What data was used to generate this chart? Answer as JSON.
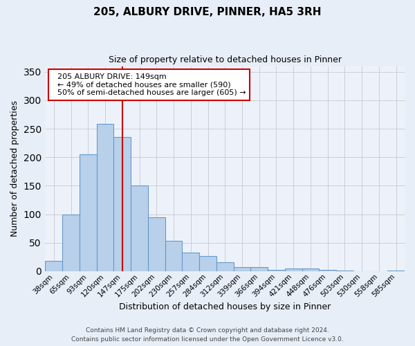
{
  "title": "205, ALBURY DRIVE, PINNER, HA5 3RH",
  "subtitle": "Size of property relative to detached houses in Pinner",
  "xlabel": "Distribution of detached houses by size in Pinner",
  "ylabel": "Number of detached properties",
  "bar_labels": [
    "38sqm",
    "65sqm",
    "93sqm",
    "120sqm",
    "147sqm",
    "175sqm",
    "202sqm",
    "230sqm",
    "257sqm",
    "284sqm",
    "312sqm",
    "339sqm",
    "366sqm",
    "394sqm",
    "421sqm",
    "448sqm",
    "476sqm",
    "503sqm",
    "530sqm",
    "558sqm",
    "585sqm"
  ],
  "bar_values": [
    18,
    100,
    205,
    258,
    236,
    150,
    95,
    53,
    33,
    26,
    15,
    7,
    7,
    2,
    5,
    5,
    2,
    1,
    0,
    0,
    1
  ],
  "bar_color": "#b8d0ea",
  "bar_edge_color": "#6699cc",
  "highlight_line_index": 4,
  "highlight_line_color": "#cc0000",
  "ylim": [
    0,
    360
  ],
  "yticks": [
    0,
    50,
    100,
    150,
    200,
    250,
    300,
    350
  ],
  "annotation_title": "205 ALBURY DRIVE: 149sqm",
  "annotation_line1": "← 49% of detached houses are smaller (590)",
  "annotation_line2": "50% of semi-detached houses are larger (605) →",
  "annotation_box_color": "#ffffff",
  "annotation_box_edge_color": "#cc0000",
  "footer_line1": "Contains HM Land Registry data © Crown copyright and database right 2024.",
  "footer_line2": "Contains public sector information licensed under the Open Government Licence v3.0.",
  "bg_color": "#e8eef8",
  "plot_bg_color": "#edf2fa",
  "grid_color": "#c8c8d0"
}
